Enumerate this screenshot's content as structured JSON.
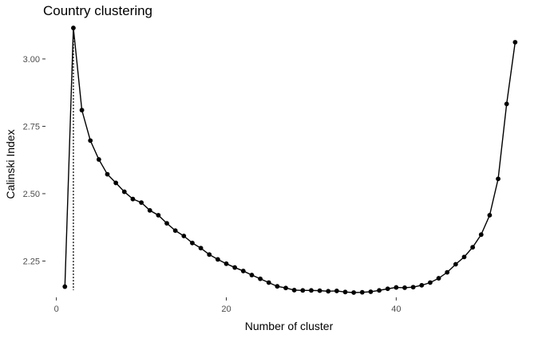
{
  "chart_data": {
    "type": "line",
    "title": "Country clustering",
    "xlabel": "Number of cluster",
    "ylabel": "Calinski Index",
    "xlim": [
      -1,
      55
    ],
    "ylim": [
      2.13,
      3.13
    ],
    "x_ticks": [
      0,
      20,
      40
    ],
    "y_ticks": [
      2.25,
      2.5,
      2.75,
      3.0
    ],
    "x_tick_labels": [
      "0",
      "20",
      "40"
    ],
    "y_tick_labels": [
      "2.25",
      "2.50",
      "2.75",
      "3.00"
    ],
    "grid": false,
    "optimal_k": 2,
    "series": [
      {
        "x": [
          1,
          2,
          3,
          4,
          5,
          6,
          7,
          8,
          9,
          10,
          11,
          12,
          13,
          14,
          15,
          16,
          17,
          18,
          19,
          20,
          21,
          22,
          23,
          24,
          25,
          26,
          27,
          28,
          29,
          30,
          31,
          32,
          33,
          34,
          35,
          36,
          37,
          38,
          39,
          40,
          41,
          42,
          43,
          44,
          45,
          46,
          47,
          48,
          49,
          50,
          51,
          52,
          53,
          54
        ],
        "values": [
          2.155,
          3.115,
          2.81,
          2.697,
          2.627,
          2.572,
          2.54,
          2.507,
          2.48,
          2.467,
          2.438,
          2.42,
          2.39,
          2.363,
          2.343,
          2.317,
          2.298,
          2.274,
          2.256,
          2.24,
          2.226,
          2.213,
          2.198,
          2.184,
          2.17,
          2.156,
          2.15,
          2.142,
          2.141,
          2.141,
          2.14,
          2.138,
          2.139,
          2.135,
          2.133,
          2.134,
          2.136,
          2.141,
          2.147,
          2.152,
          2.151,
          2.153,
          2.16,
          2.17,
          2.186,
          2.208,
          2.238,
          2.265,
          2.301,
          2.348,
          2.42,
          2.555,
          2.833,
          3.062
        ]
      }
    ]
  }
}
